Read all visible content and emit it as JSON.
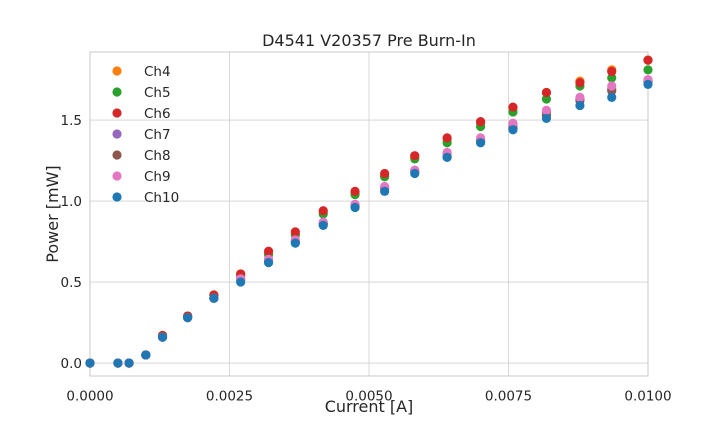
{
  "chart_data": {
    "type": "scatter",
    "title": "D4541 V20357 Pre Burn-In",
    "xlabel": "Current [A]",
    "ylabel": "Power [mW]",
    "xlim": [
      0.0,
      0.01
    ],
    "ylim": [
      -0.08,
      1.92
    ],
    "xticks": [
      0.0,
      0.0025,
      0.005,
      0.0075,
      0.01
    ],
    "xtick_labels": [
      "0.0000",
      "0.0025",
      "0.0050",
      "0.0075",
      "0.0100"
    ],
    "yticks": [
      0.0,
      0.5,
      1.0,
      1.5
    ],
    "ytick_labels": [
      "0.0",
      "0.5",
      "1.0",
      "1.5"
    ],
    "grid": true,
    "legend_position": "top-left",
    "x": [
      0.0,
      0.0005,
      0.0007,
      0.001,
      0.0013,
      0.00175,
      0.00222,
      0.0027,
      0.0032,
      0.00368,
      0.00418,
      0.00475,
      0.00528,
      0.00582,
      0.0064,
      0.007,
      0.00758,
      0.00818,
      0.00878,
      0.00935,
      0.01
    ],
    "series": [
      {
        "name": "Ch4",
        "color": "#ff7f0e",
        "values": [
          0.0,
          0.0,
          0.0,
          0.05,
          0.17,
          0.29,
          0.42,
          0.55,
          0.68,
          0.8,
          0.93,
          1.05,
          1.16,
          1.27,
          1.38,
          1.48,
          1.57,
          1.67,
          1.74,
          1.81,
          1.87
        ]
      },
      {
        "name": "Ch5",
        "color": "#2ca02c",
        "values": [
          0.0,
          0.0,
          0.0,
          0.05,
          0.17,
          0.29,
          0.42,
          0.54,
          0.67,
          0.79,
          0.92,
          1.04,
          1.15,
          1.26,
          1.36,
          1.46,
          1.55,
          1.63,
          1.71,
          1.76,
          1.81
        ]
      },
      {
        "name": "Ch6",
        "color": "#d62728",
        "values": [
          0.0,
          0.0,
          0.0,
          0.05,
          0.17,
          0.29,
          0.42,
          0.55,
          0.69,
          0.81,
          0.94,
          1.06,
          1.17,
          1.28,
          1.39,
          1.49,
          1.58,
          1.67,
          1.73,
          1.8,
          1.87
        ]
      },
      {
        "name": "Ch7",
        "color": "#9467bd",
        "values": [
          0.0,
          0.0,
          0.0,
          0.05,
          0.16,
          0.28,
          0.4,
          0.51,
          0.63,
          0.75,
          0.86,
          0.97,
          1.08,
          1.19,
          1.29,
          1.38,
          1.47,
          1.55,
          1.63,
          1.69,
          1.74
        ]
      },
      {
        "name": "Ch8",
        "color": "#8c564b",
        "values": [
          0.0,
          0.0,
          0.0,
          0.05,
          0.16,
          0.28,
          0.4,
          0.52,
          0.64,
          0.75,
          0.86,
          0.97,
          1.08,
          1.18,
          1.27,
          1.37,
          1.45,
          1.53,
          1.62,
          1.68,
          1.74
        ]
      },
      {
        "name": "Ch9",
        "color": "#e377c2",
        "values": [
          0.0,
          0.0,
          0.0,
          0.05,
          0.16,
          0.28,
          0.4,
          0.52,
          0.64,
          0.76,
          0.87,
          0.98,
          1.09,
          1.19,
          1.3,
          1.39,
          1.48,
          1.56,
          1.64,
          1.71,
          1.75
        ]
      },
      {
        "name": "Ch10",
        "color": "#1f77b4",
        "values": [
          0.0,
          0.0,
          0.0,
          0.05,
          0.16,
          0.28,
          0.4,
          0.5,
          0.62,
          0.74,
          0.85,
          0.96,
          1.06,
          1.17,
          1.27,
          1.36,
          1.44,
          1.51,
          1.59,
          1.64,
          1.72
        ]
      }
    ]
  }
}
